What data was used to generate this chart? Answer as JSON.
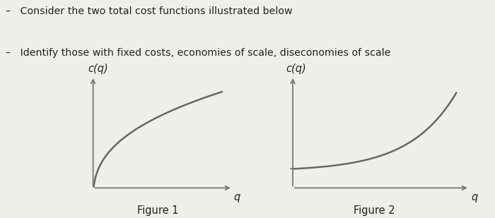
{
  "title_line1": "Consider the two total cost functions illustrated below",
  "title_line2": "Identify those with fixed costs, economies of scale, diseconomies of scale",
  "fig1_label": "Figure 1",
  "fig2_label": "Figure 2",
  "ylabel": "c(q)",
  "xlabel": "q",
  "bg_color": "#f0eeeb",
  "curve_color": "#666666",
  "axis_color": "#777777",
  "text_color": "#222222",
  "bullet": "–"
}
